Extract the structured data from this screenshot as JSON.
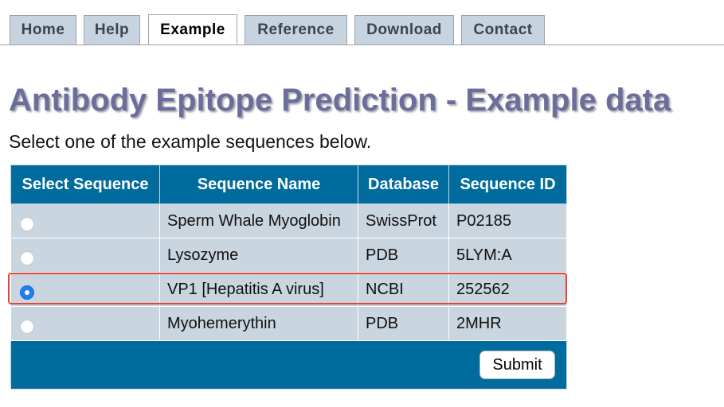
{
  "tabs": [
    {
      "label": "Home",
      "active": false
    },
    {
      "label": "Help",
      "active": false
    },
    {
      "label": "Example",
      "active": true
    },
    {
      "label": "Reference",
      "active": false
    },
    {
      "label": "Download",
      "active": false
    },
    {
      "label": "Contact",
      "active": false
    }
  ],
  "page": {
    "title": "Antibody Epitope Prediction - Example data",
    "subtitle": "Select one of the example sequences below."
  },
  "table": {
    "headers": [
      "Select Sequence",
      "Sequence Name",
      "Database",
      "Sequence ID"
    ],
    "rows": [
      {
        "selected": false,
        "name": "Sperm Whale Myoglobin",
        "database": "SwissProt",
        "id": "P02185"
      },
      {
        "selected": false,
        "name": "Lysozyme",
        "database": "PDB",
        "id": "5LYM:A"
      },
      {
        "selected": true,
        "name": "VP1 [Hepatitis A virus]",
        "database": "NCBI",
        "id": "252562"
      },
      {
        "selected": false,
        "name": "Myohemerythin",
        "database": "PDB",
        "id": "2MHR"
      }
    ],
    "submit_label": "Submit"
  },
  "colors": {
    "header_bg": "#006c9e",
    "row_bg": "#c9d5df",
    "title": "#6b6e9c",
    "highlight": "#e8433a",
    "radio_checked": "#1f7cf2"
  }
}
